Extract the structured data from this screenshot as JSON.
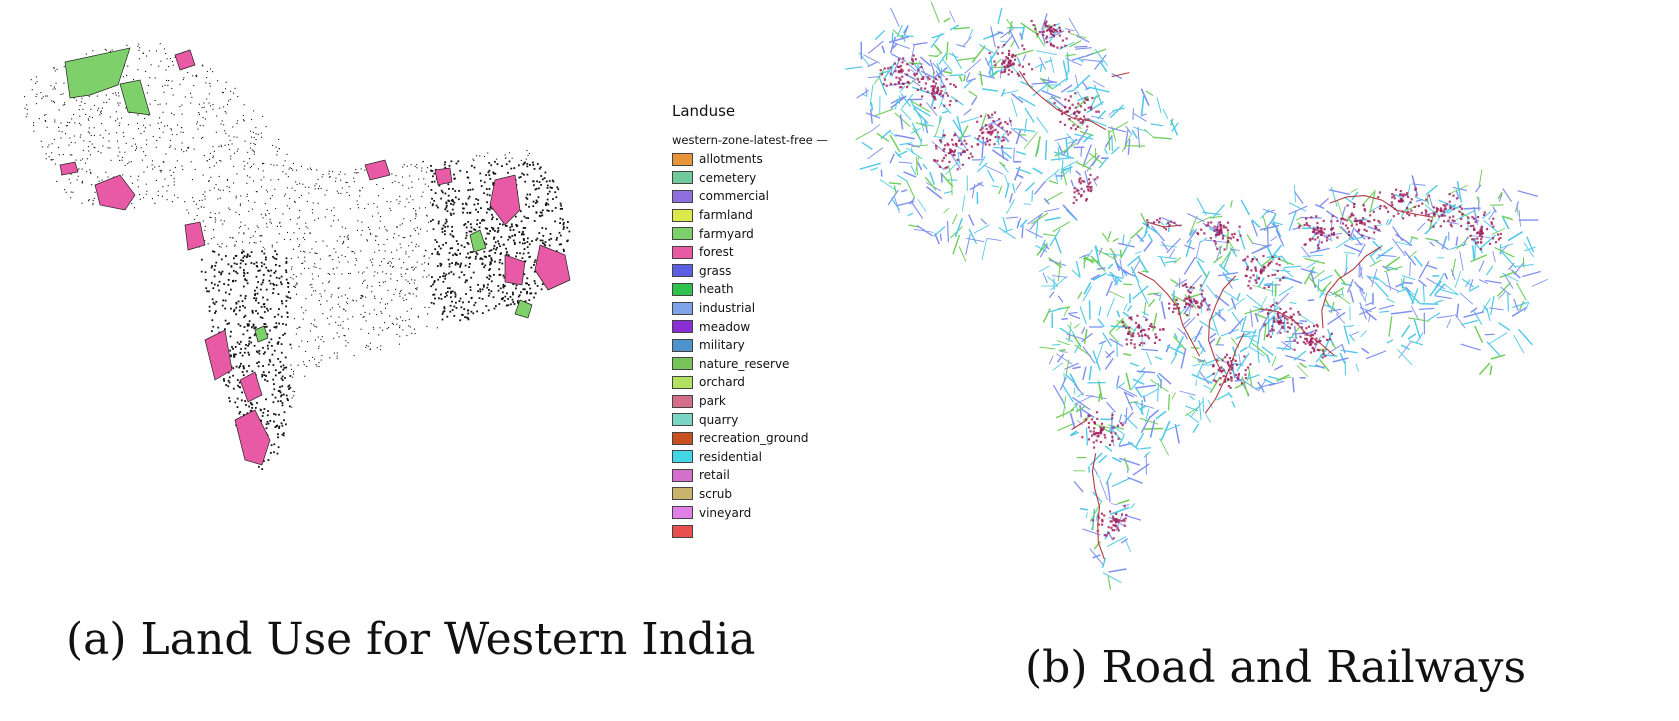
{
  "panel_a": {
    "caption": "(a) Land Use for Western India",
    "legend": {
      "title": "Landuse",
      "layer": "western-zone-latest-free — g",
      "items": [
        {
          "label": "allotments",
          "color": "#e8953a"
        },
        {
          "label": "cemetery",
          "color": "#6fc99a"
        },
        {
          "label": "commercial",
          "color": "#8f6fe0"
        },
        {
          "label": "farmland",
          "color": "#dde84a"
        },
        {
          "label": "farmyard",
          "color": "#7ed06a"
        },
        {
          "label": "forest",
          "color": "#e85aa6"
        },
        {
          "label": "grass",
          "color": "#5b5ee0"
        },
        {
          "label": "heath",
          "color": "#2ec24e"
        },
        {
          "label": "industrial",
          "color": "#7fa3ea"
        },
        {
          "label": "meadow",
          "color": "#8a2fd6"
        },
        {
          "label": "military",
          "color": "#4f93cc"
        },
        {
          "label": "nature_reserve",
          "color": "#78c45a"
        },
        {
          "label": "orchard",
          "color": "#b2e060"
        },
        {
          "label": "park",
          "color": "#d36e8a"
        },
        {
          "label": "quarry",
          "color": "#79d6c6"
        },
        {
          "label": "recreation_ground",
          "color": "#c8501e"
        },
        {
          "label": "residential",
          "color": "#42d6e6"
        },
        {
          "label": "retail",
          "color": "#d46fcc"
        },
        {
          "label": "scrub",
          "color": "#c9b46e"
        },
        {
          "label": "vineyard",
          "color": "#e07fe6"
        },
        {
          "label": "",
          "color": "#e85050"
        }
      ]
    }
  },
  "panel_b": {
    "caption": "(b) Road and Railways",
    "colors": {
      "roads_light": "#4fc9e8",
      "roads_blue": "#7f8ff0",
      "roads_green": "#6fce5a",
      "urban": "#a0225e",
      "rail": "#b03a40"
    }
  }
}
